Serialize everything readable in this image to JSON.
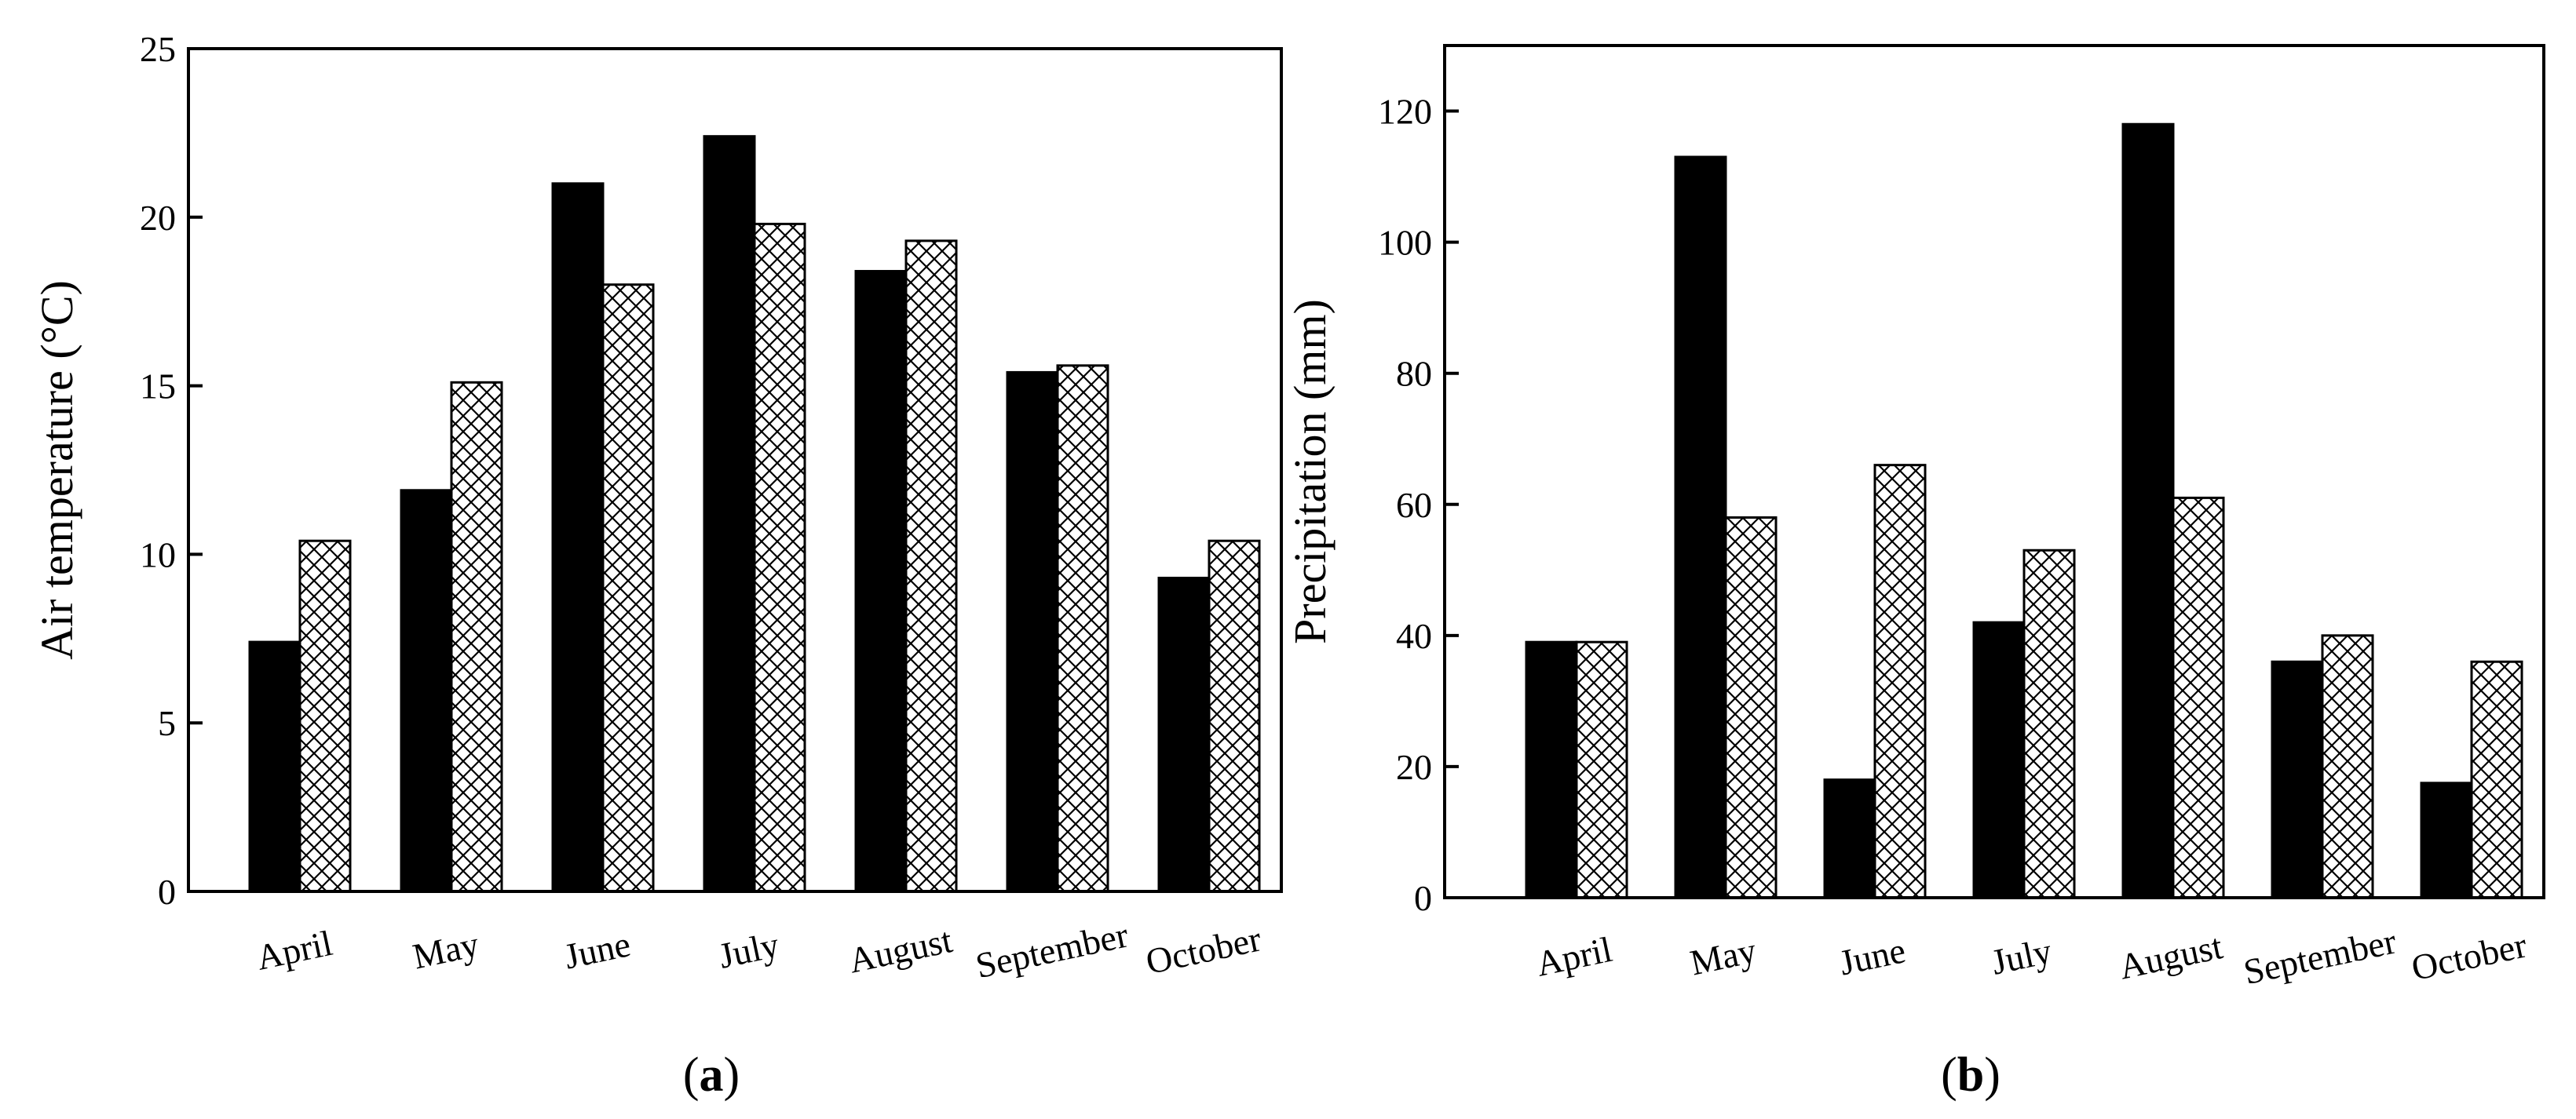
{
  "colors": {
    "series1_fill": "#000000",
    "series2_fill": "#ffffff",
    "axis": "#000000"
  },
  "chart_data": [
    {
      "type": "bar",
      "panel_label_open": "(",
      "panel_label_letter": "a",
      "panel_label_close": ")",
      "title": "",
      "xlabel": "",
      "ylabel": "Air temperature (°C)",
      "ylim": [
        0,
        25
      ],
      "yticks": [
        0,
        5,
        10,
        15,
        20,
        25
      ],
      "categories": [
        "April",
        "May",
        "June",
        "July",
        "August",
        "September",
        "October"
      ],
      "series": [
        {
          "name": "solid",
          "pattern": "solid",
          "values": [
            7.4,
            11.9,
            21.0,
            22.4,
            18.4,
            15.4,
            9.3
          ]
        },
        {
          "name": "cross-hatched",
          "pattern": "crosshatch",
          "values": [
            10.4,
            15.1,
            18.0,
            19.8,
            19.3,
            15.6,
            10.4
          ]
        }
      ]
    },
    {
      "type": "bar",
      "panel_label_open": "(",
      "panel_label_letter": "b",
      "panel_label_close": ")",
      "title": "",
      "xlabel": "",
      "ylabel": "Precipitation (mm)",
      "ylim": [
        0,
        130
      ],
      "yticks": [
        0,
        20,
        40,
        60,
        80,
        100,
        120
      ],
      "categories": [
        "April",
        "May",
        "June",
        "July",
        "August",
        "September",
        "October"
      ],
      "series": [
        {
          "name": "solid",
          "pattern": "solid",
          "values": [
            39,
            113,
            18,
            42,
            118,
            36,
            17.5
          ]
        },
        {
          "name": "cross-hatched",
          "pattern": "crosshatch",
          "values": [
            39,
            58,
            66,
            53,
            61,
            40,
            36
          ]
        }
      ]
    }
  ]
}
